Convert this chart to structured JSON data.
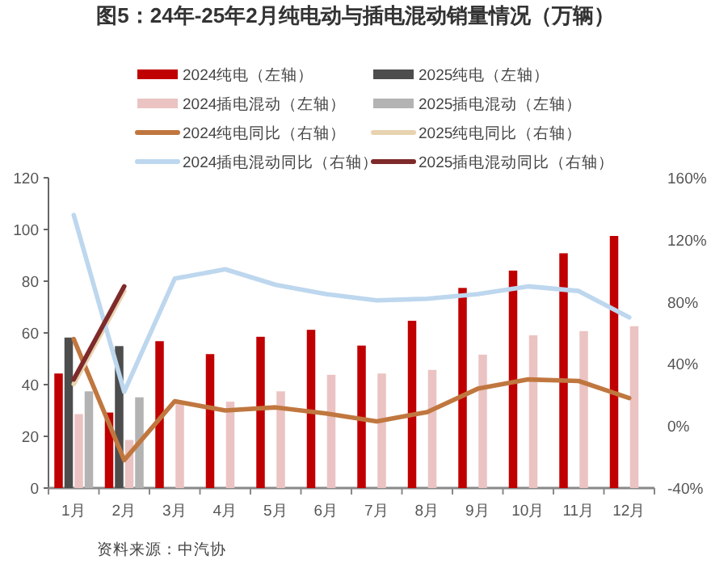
{
  "chart_data": {
    "type": "bar",
    "title": "图5：24年-25年2月纯电动与插电混动销量情况（万辆）",
    "categories": [
      "1月",
      "2月",
      "3月",
      "4月",
      "5月",
      "6月",
      "7月",
      "8月",
      "9月",
      "10月",
      "11月",
      "12月"
    ],
    "ylim": [
      0,
      120
    ],
    "yticks": [
      0,
      20,
      40,
      60,
      80,
      100,
      120
    ],
    "y2lim": [
      -40,
      160
    ],
    "y2ticks": [
      {
        "value": -40,
        "label": "-40%"
      },
      {
        "value": 0,
        "label": "0%"
      },
      {
        "value": 40,
        "label": "40%"
      },
      {
        "value": 80,
        "label": "80%"
      },
      {
        "value": 120,
        "label": "120%"
      },
      {
        "value": 160,
        "label": "160%"
      }
    ],
    "legend": "top",
    "grid": false,
    "annotations": [
      "资料来源：中汽协"
    ],
    "series": [
      {
        "name": "2024纯电（左轴）",
        "color": "#c00000",
        "values": [
          44.3,
          29.2,
          56.8,
          51.8,
          58.5,
          61.2,
          55.1,
          64.7,
          77.4,
          84.1,
          90.8,
          97.5
        ]
      },
      {
        "name": "2025纯电（左轴）",
        "color": "#4d4d4d",
        "values": [
          58.2,
          54.9,
          null,
          null,
          null,
          null,
          null,
          null,
          null,
          null,
          null,
          null
        ]
      },
      {
        "name": "2024插电混动（左轴）",
        "color": "#ebc3c3",
        "values": [
          28.6,
          18.6,
          33.5,
          33.4,
          37.4,
          43.8,
          44.3,
          45.7,
          51.6,
          59.1,
          60.7,
          62.6
        ]
      },
      {
        "name": "2025插电混动（左轴）",
        "color": "#b3b3b3",
        "values": [
          37.4,
          35.1,
          null,
          null,
          null,
          null,
          null,
          null,
          null,
          null,
          null,
          null
        ]
      },
      {
        "name": "2024纯电同比（右轴）",
        "type": "line",
        "axis": "y2",
        "color": "#c0773f",
        "values": [
          56,
          -22,
          16,
          10,
          12,
          8,
          3,
          9,
          24,
          30,
          29,
          18
        ]
      },
      {
        "name": "2025纯电同比（右轴）",
        "type": "line",
        "axis": "y2",
        "color": "#e8d3b0",
        "values": [
          27,
          87,
          null,
          null,
          null,
          null,
          null,
          null,
          null,
          null,
          null,
          null
        ]
      },
      {
        "name": "2024插电混动同比（右轴）",
        "type": "line",
        "axis": "y2",
        "color": "#bdd7ee",
        "values": [
          136,
          22,
          95,
          101,
          91,
          85,
          81,
          82,
          85,
          90,
          87,
          70
        ]
      },
      {
        "name": "2025插电混动同比（右轴）",
        "type": "line",
        "axis": "y2",
        "color": "#7f2a2a",
        "values": [
          30,
          90,
          null,
          null,
          null,
          null,
          null,
          null,
          null,
          null,
          null,
          null
        ]
      }
    ]
  }
}
